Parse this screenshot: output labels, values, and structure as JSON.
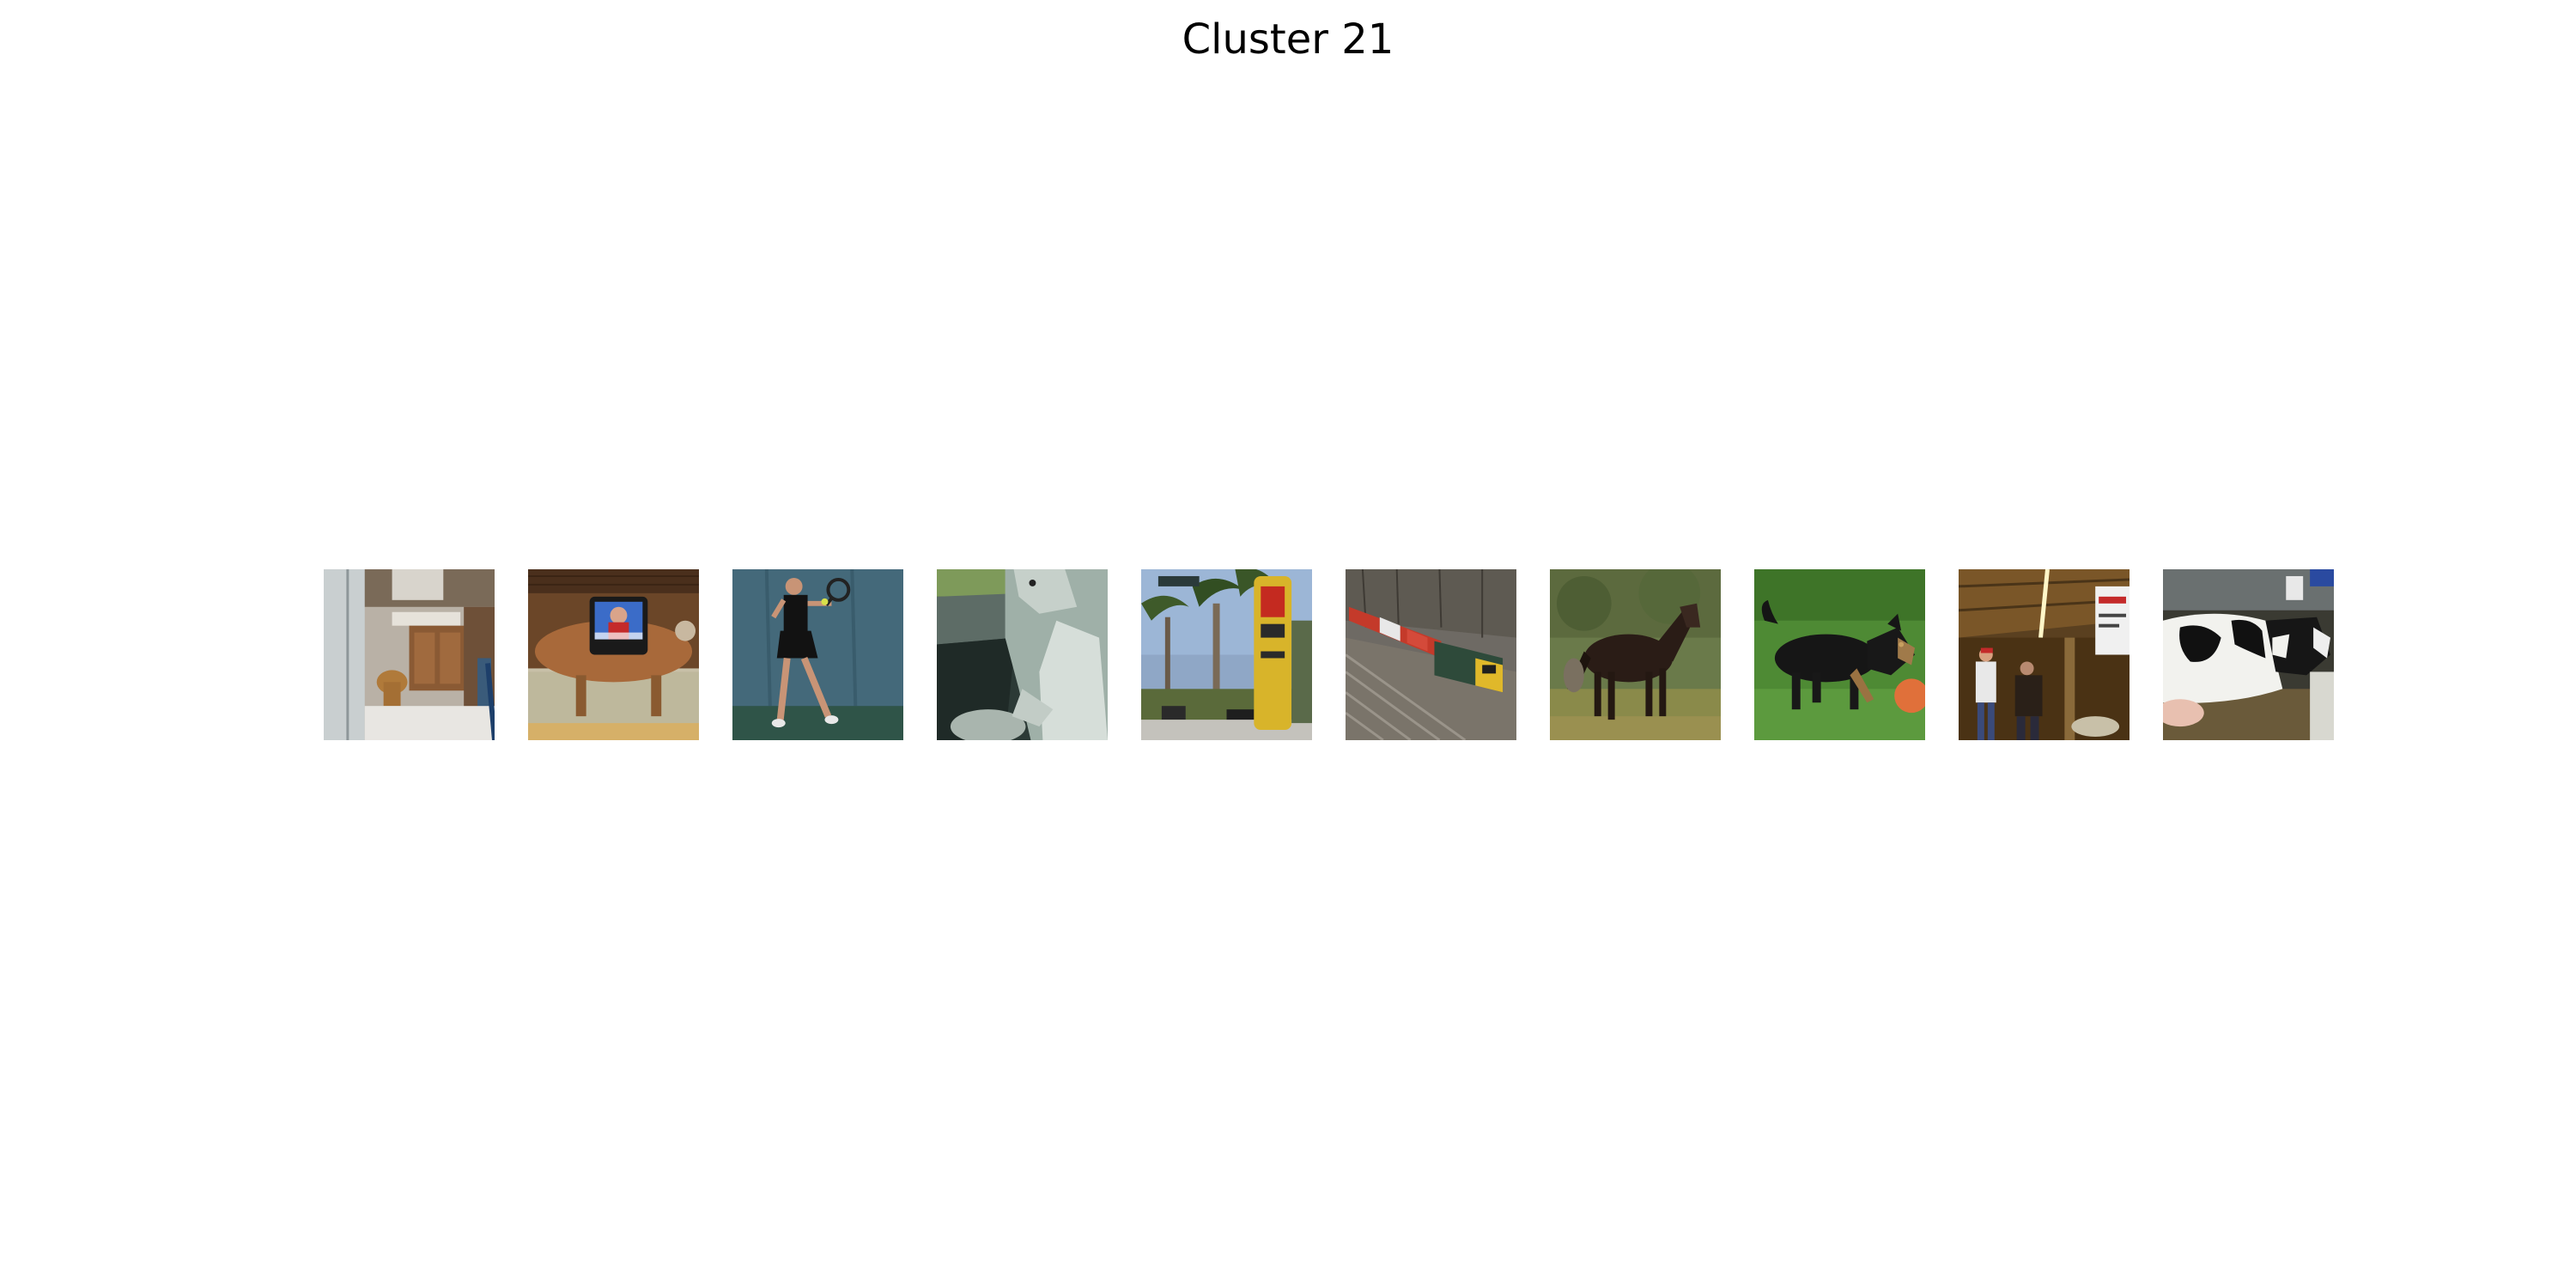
{
  "figure": {
    "title": "Cluster 21"
  },
  "images": [
    {
      "subject": "bathroom-icon"
    },
    {
      "subject": "television-icon"
    },
    {
      "subject": "tennis-player-icon"
    },
    {
      "subject": "dog-in-car-icon"
    },
    {
      "subject": "street-palm-trees-icon"
    },
    {
      "subject": "train-icon"
    },
    {
      "subject": "horse-icon"
    },
    {
      "subject": "dog-running-icon"
    },
    {
      "subject": "barn-people-icon"
    },
    {
      "subject": "cow-icon"
    }
  ]
}
